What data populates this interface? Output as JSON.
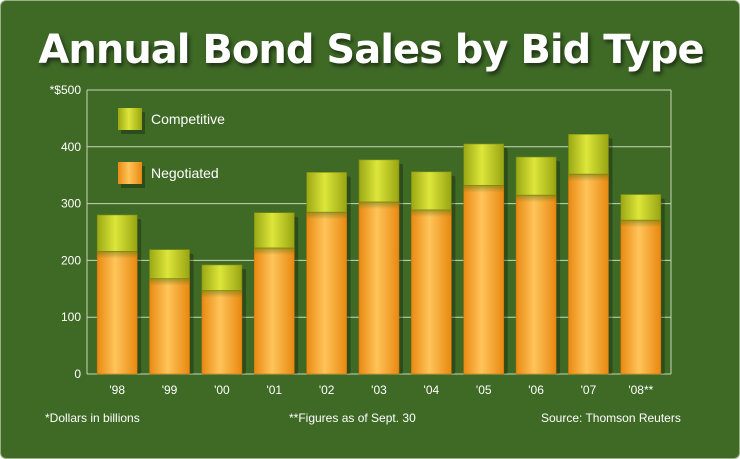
{
  "chart_data": {
    "type": "bar",
    "stacked": true,
    "title": "Annual Bond Sales by Bid Type",
    "categories": [
      "'98",
      "'99",
      "'00",
      "'01",
      "'02",
      "'03",
      "'04",
      "'05",
      "'06",
      "'07",
      "'08**"
    ],
    "series": [
      {
        "name": "Negotiated",
        "values": [
          216,
          168,
          147,
          222,
          285,
          303,
          289,
          332,
          315,
          352,
          271
        ],
        "color": "#f5a623"
      },
      {
        "name": "Competitive",
        "values": [
          64,
          51,
          45,
          62,
          70,
          74,
          67,
          73,
          67,
          70,
          45
        ],
        "color": "#b8c41a"
      }
    ],
    "yticks": [
      "0",
      "100",
      "200",
      "300",
      "400",
      "*$500"
    ],
    "ylim": [
      0,
      500
    ],
    "grid": true,
    "legend_position": "top-left",
    "colors": {
      "background": "#3f6a26",
      "gridline": "#c9d6b8"
    }
  },
  "footnotes": {
    "dollars": "*Dollars in billions",
    "figures": "**Figures as of Sept. 30",
    "source": "Source: Thomson Reuters"
  }
}
